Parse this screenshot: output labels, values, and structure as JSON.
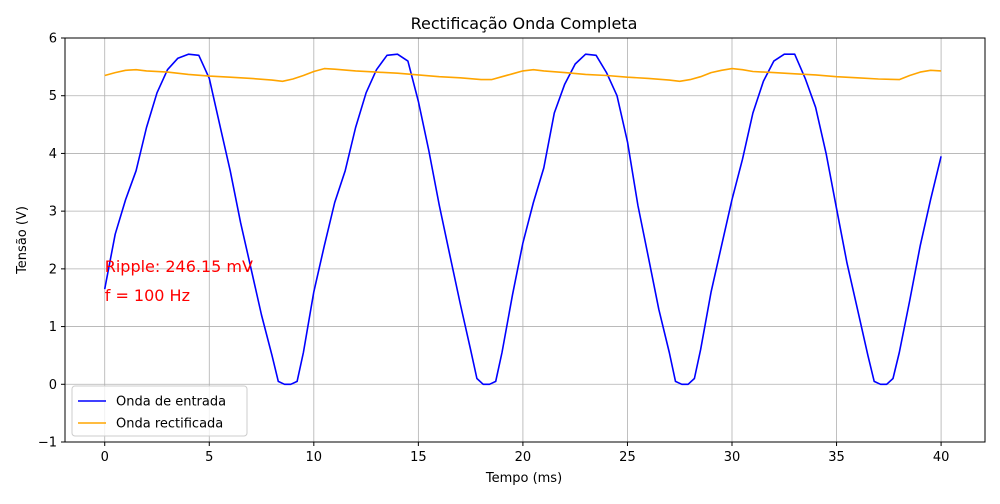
{
  "chart_data": {
    "type": "line",
    "title": "Rectificação Onda Completa",
    "xlabel": "Tempo (ms)",
    "ylabel": "Tensão (V)",
    "xlim": [
      -1.9,
      42.1
    ],
    "ylim": [
      -1,
      6
    ],
    "xticks": [
      0,
      5,
      10,
      15,
      20,
      25,
      30,
      35,
      40
    ],
    "yticks": [
      -1,
      0,
      1,
      2,
      3,
      4,
      5,
      6
    ],
    "grid": true,
    "legend_position": "lower-left",
    "annotations": [
      {
        "text": "Ripple: 246.15 mV",
        "x": 0,
        "y": 2.05,
        "color": "#ff0000"
      },
      {
        "text": "f = 100 Hz",
        "x": 0,
        "y": 1.55,
        "color": "#ff0000"
      }
    ],
    "series": [
      {
        "name": "Onda de entrada",
        "color": "#0000ff",
        "x": [
          0,
          0.5,
          1,
          1.5,
          2,
          2.5,
          3,
          3.5,
          4,
          4.5,
          5,
          5.5,
          6,
          6.5,
          7,
          7.5,
          8,
          8.3,
          8.6,
          8.9,
          9.2,
          9.5,
          10,
          10.5,
          11,
          11.5,
          12,
          12.5,
          13,
          13.5,
          14,
          14.5,
          15,
          15.5,
          16,
          16.5,
          17,
          17.5,
          17.8,
          18.1,
          18.4,
          18.7,
          19,
          19.5,
          20,
          20.5,
          21,
          21.5,
          22,
          22.5,
          23,
          23.5,
          24,
          24.5,
          25,
          25.5,
          26,
          26.5,
          27,
          27.3,
          27.6,
          27.9,
          28.2,
          28.5,
          29,
          29.5,
          30,
          30.5,
          31,
          31.5,
          32,
          32.5,
          33,
          33.5,
          34,
          34.5,
          35,
          35.5,
          36,
          36.5,
          36.8,
          37.1,
          37.4,
          37.7,
          38,
          38.5,
          39,
          39.5,
          40
        ],
        "y": [
          1.65,
          2.6,
          3.2,
          3.7,
          4.45,
          5.05,
          5.45,
          5.65,
          5.72,
          5.7,
          5.3,
          4.5,
          3.7,
          2.8,
          2.0,
          1.2,
          0.5,
          0.05,
          0.0,
          0.0,
          0.05,
          0.55,
          1.6,
          2.4,
          3.15,
          3.7,
          4.45,
          5.05,
          5.45,
          5.7,
          5.72,
          5.6,
          4.9,
          4.05,
          3.1,
          2.25,
          1.4,
          0.6,
          0.1,
          0.0,
          0.0,
          0.05,
          0.55,
          1.55,
          2.45,
          3.15,
          3.75,
          4.7,
          5.2,
          5.55,
          5.72,
          5.7,
          5.4,
          5.0,
          4.2,
          3.1,
          2.2,
          1.3,
          0.55,
          0.05,
          0.0,
          0.0,
          0.1,
          0.6,
          1.6,
          2.4,
          3.2,
          3.9,
          4.7,
          5.25,
          5.6,
          5.72,
          5.72,
          5.3,
          4.8,
          4.0,
          3.05,
          2.1,
          1.3,
          0.5,
          0.05,
          0.0,
          0.0,
          0.1,
          0.55,
          1.45,
          2.4,
          3.2,
          3.95
        ]
      },
      {
        "name": "Onda rectificada",
        "color": "#ffa500",
        "x": [
          0,
          0.5,
          1,
          1.5,
          2,
          3,
          4,
          5,
          6,
          7,
          8,
          8.5,
          9,
          9.5,
          10,
          10.5,
          11,
          12,
          13,
          14,
          15,
          16,
          17,
          18,
          18.5,
          19,
          19.5,
          20,
          20.5,
          21,
          22,
          23,
          24,
          25,
          26,
          27,
          27.5,
          28,
          28.5,
          29,
          29.5,
          30,
          30.5,
          31,
          32,
          33,
          34,
          35,
          36,
          37,
          38,
          38.5,
          39,
          39.5,
          40
        ],
        "y": [
          5.35,
          5.4,
          5.44,
          5.45,
          5.43,
          5.41,
          5.37,
          5.34,
          5.32,
          5.3,
          5.27,
          5.25,
          5.29,
          5.35,
          5.42,
          5.47,
          5.46,
          5.43,
          5.41,
          5.39,
          5.36,
          5.33,
          5.31,
          5.28,
          5.28,
          5.33,
          5.38,
          5.43,
          5.45,
          5.43,
          5.4,
          5.37,
          5.35,
          5.32,
          5.3,
          5.27,
          5.25,
          5.28,
          5.33,
          5.4,
          5.44,
          5.47,
          5.45,
          5.42,
          5.4,
          5.38,
          5.36,
          5.33,
          5.31,
          5.29,
          5.28,
          5.35,
          5.41,
          5.44,
          5.43
        ]
      }
    ]
  }
}
